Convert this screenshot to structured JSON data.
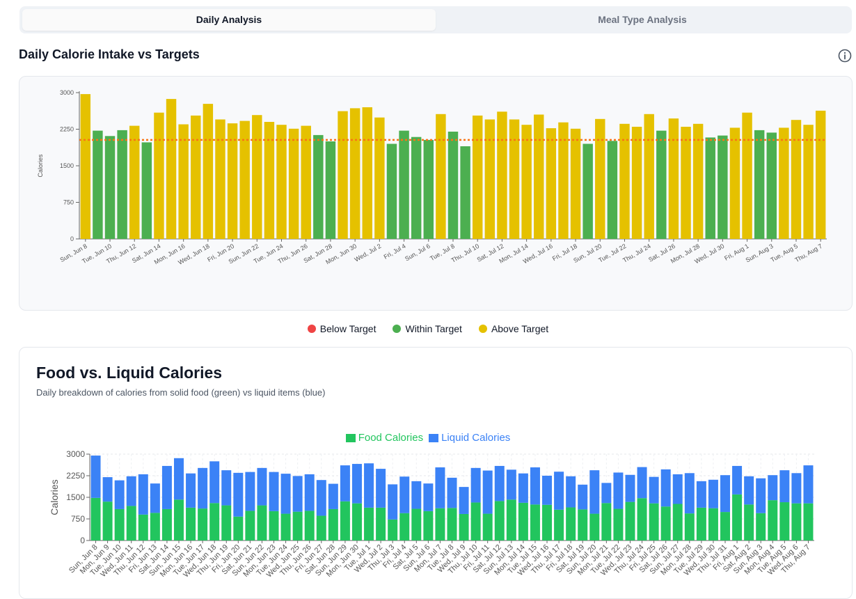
{
  "tabs": {
    "daily": "Daily Analysis",
    "meal": "Meal Type Analysis"
  },
  "section_title": "Daily Calorie Intake vs Targets",
  "info_icon": "info-icon",
  "legend1": [
    {
      "label": "Below Target",
      "color": "#ef4444"
    },
    {
      "label": "Within Target",
      "color": "#4caf50"
    },
    {
      "label": "Above Target",
      "color": "#e5c100"
    }
  ],
  "card2": {
    "title": "Food vs. Liquid Calories",
    "subtitle": "Daily breakdown of calories from solid food (green) vs liquid items (blue)"
  },
  "legend2": [
    {
      "label": "Food Calories",
      "color": "#22c55e"
    },
    {
      "label": "Liquid Calories",
      "color": "#3b82f6"
    }
  ],
  "colors": {
    "below": "#ef4444",
    "within": "#4caf50",
    "above": "#e5c100",
    "target": "#f97316",
    "food": "#22c55e",
    "liquid": "#3b82f6"
  },
  "chart_data": [
    {
      "type": "bar",
      "title": "Daily Calorie Intake vs Targets",
      "ylabel": "Calories",
      "ylim": [
        0,
        3000
      ],
      "yticks": [
        0,
        750,
        1500,
        2250,
        3000
      ],
      "target": 2030,
      "days": [
        "Sun, Jun 8",
        "Mon, Jun 9",
        "Tue, Jun 10",
        "Wed, Jun 11",
        "Thu, Jun 12",
        "Fri, Jun 13",
        "Sat, Jun 14",
        "Sun, Jun 15",
        "Mon, Jun 16",
        "Tue, Jun 17",
        "Wed, Jun 18",
        "Thu, Jun 19",
        "Fri, Jun 20",
        "Sat, Jun 21",
        "Sun, Jun 22",
        "Mon, Jun 23",
        "Tue, Jun 24",
        "Wed, Jun 25",
        "Thu, Jun 26",
        "Fri, Jun 27",
        "Sat, Jun 28",
        "Sun, Jun 29",
        "Mon, Jun 30",
        "Tue, Jul 1",
        "Wed, Jul 2",
        "Thu, Jul 3",
        "Fri, Jul 4",
        "Sat, Jul 5",
        "Sun, Jul 6",
        "Mon, Jul 7",
        "Tue, Jul 8",
        "Wed, Jul 9",
        "Thu, Jul 10",
        "Fri, Jul 11",
        "Sat, Jul 12",
        "Sun, Jul 13",
        "Mon, Jul 14",
        "Tue, Jul 15",
        "Wed, Jul 16",
        "Thu, Jul 17",
        "Fri, Jul 18",
        "Sat, Jul 19",
        "Sun, Jul 20",
        "Mon, Jul 21",
        "Tue, Jul 22",
        "Wed, Jul 23",
        "Thu, Jul 24",
        "Fri, Jul 25",
        "Sat, Jul 26",
        "Sun, Jul 27",
        "Mon, Jul 28",
        "Tue, Jul 29",
        "Wed, Jul 30",
        "Thu, Jul 31",
        "Fri, Aug 1",
        "Sat, Aug 2",
        "Sun, Aug 3",
        "Mon, Aug 4",
        "Tue, Aug 5",
        "Wed, Aug 6",
        "Thu, Aug 7"
      ],
      "xtick_labels": [
        "Sun, Jun 8",
        "Tue, Jun 10",
        "Thu, Jun 12",
        "Sat, Jun 14",
        "Mon, Jun 16",
        "Wed, Jun 18",
        "Fri, Jun 20",
        "Sun, Jun 22",
        "Tue, Jun 24",
        "Thu, Jun 26",
        "Sat, Jun 28",
        "Mon, Jun 30",
        "Wed, Jul 2",
        "Fri, Jul 4",
        "Sun, Jul 6",
        "Tue, Jul 8",
        "Thu, Jul 10",
        "Sat, Jul 12",
        "Mon, Jul 14",
        "Wed, Jul 16",
        "Fri, Jul 18",
        "Sun, Jul 20",
        "Tue, Jul 22",
        "Thu, Jul 24",
        "Sat, Jul 26",
        "Mon, Jul 28",
        "Wed, Jul 30",
        "Fri, Aug 1",
        "Sun, Aug 3",
        "Tue, Aug 5",
        "Thu, Aug 7"
      ],
      "values": [
        2970,
        2220,
        2110,
        2230,
        2320,
        1980,
        2590,
        2870,
        2350,
        2530,
        2770,
        2450,
        2370,
        2420,
        2540,
        2400,
        2340,
        2260,
        2320,
        2130,
        2000,
        2620,
        2680,
        2700,
        2490,
        1950,
        2220,
        2090,
        2030,
        2560,
        2200,
        1900,
        2530,
        2450,
        2610,
        2450,
        2340,
        2550,
        2270,
        2390,
        2260,
        1950,
        2460,
        2010,
        2360,
        2300,
        2560,
        2220,
        2470,
        2300,
        2360,
        2080,
        2120,
        2280,
        2590,
        2230,
        2180,
        2280,
        2440,
        2340,
        2630
      ],
      "status": [
        "above",
        "within",
        "within",
        "within",
        "above",
        "within",
        "above",
        "above",
        "above",
        "above",
        "above",
        "above",
        "above",
        "above",
        "above",
        "above",
        "above",
        "above",
        "above",
        "within",
        "within",
        "above",
        "above",
        "above",
        "above",
        "within",
        "within",
        "within",
        "within",
        "above",
        "within",
        "within",
        "above",
        "above",
        "above",
        "above",
        "above",
        "above",
        "above",
        "above",
        "above",
        "within",
        "above",
        "within",
        "above",
        "above",
        "above",
        "within",
        "above",
        "above",
        "above",
        "within",
        "within",
        "above",
        "above",
        "within",
        "within",
        "above",
        "above",
        "above",
        "above"
      ]
    },
    {
      "type": "bar",
      "stacked": true,
      "title": "Food vs. Liquid Calories",
      "ylabel": "Calories",
      "ylim": [
        0,
        3000
      ],
      "yticks": [
        0,
        750,
        1500,
        2250,
        3000
      ],
      "categories": [
        "Sun, Jun 8",
        "Mon, Jun 9",
        "Tue, Jun 10",
        "Wed, Jun 11",
        "Thu, Jun 12",
        "Fri, Jun 13",
        "Sat, Jun 14",
        "Sun, Jun 15",
        "Mon, Jun 16",
        "Tue, Jun 17",
        "Wed, Jun 18",
        "Thu, Jun 19",
        "Fri, Jun 20",
        "Sat, Jun 21",
        "Sun, Jun 22",
        "Mon, Jun 23",
        "Tue, Jun 24",
        "Wed, Jun 25",
        "Thu, Jun 26",
        "Fri, Jun 27",
        "Sat, Jun 28",
        "Sun, Jun 29",
        "Mon, Jun 30",
        "Tue, Jul 1",
        "Wed, Jul 2",
        "Thu, Jul 3",
        "Fri, Jul 4",
        "Sat, Jul 5",
        "Sun, Jul 6",
        "Mon, Jul 7",
        "Tue, Jul 8",
        "Wed, Jul 9",
        "Thu, Jul 10",
        "Fri, Jul 11",
        "Sat, Jul 12",
        "Sun, Jul 13",
        "Mon, Jul 14",
        "Tue, Jul 15",
        "Wed, Jul 16",
        "Thu, Jul 17",
        "Fri, Jul 18",
        "Sat, Jul 19",
        "Sun, Jul 20",
        "Mon, Jul 21",
        "Tue, Jul 22",
        "Wed, Jul 23",
        "Thu, Jul 24",
        "Fri, Jul 25",
        "Sat, Jul 26",
        "Sun, Jul 27",
        "Mon, Jul 28",
        "Tue, Jul 29",
        "Wed, Jul 30",
        "Thu, Jul 31",
        "Fri, Aug 1",
        "Sat, Aug 2",
        "Sun, Aug 3",
        "Mon, Aug 4",
        "Tue, Aug 5",
        "Wed, Aug 6",
        "Thu, Aug 7"
      ],
      "series": [
        {
          "name": "Food Calories",
          "values": [
            1480,
            1350,
            1090,
            1200,
            900,
            960,
            1090,
            1420,
            1140,
            1110,
            1300,
            1220,
            830,
            1030,
            1220,
            1020,
            930,
            1000,
            1030,
            860,
            1090,
            1360,
            1290,
            1140,
            1140,
            730,
            950,
            1100,
            1020,
            1120,
            1130,
            920,
            1320,
            930,
            1370,
            1420,
            1310,
            1250,
            1240,
            1070,
            1150,
            1080,
            930,
            1300,
            1100,
            1340,
            1470,
            1290,
            1180,
            1270,
            940,
            1140,
            1120,
            990,
            1600,
            1250,
            950,
            1400,
            1330,
            1290,
            1290
          ]
        },
        {
          "name": "Liquid Calories",
          "values": [
            1470,
            850,
            1000,
            1030,
            1400,
            1020,
            1500,
            1440,
            1190,
            1410,
            1450,
            1220,
            1520,
            1350,
            1300,
            1360,
            1390,
            1240,
            1270,
            1240,
            880,
            1250,
            1370,
            1540,
            1350,
            1220,
            1270,
            960,
            960,
            1420,
            1050,
            940,
            1200,
            1500,
            1220,
            1040,
            1020,
            1290,
            1010,
            1320,
            1080,
            860,
            1510,
            700,
            1260,
            940,
            1080,
            920,
            1290,
            1030,
            1400,
            920,
            990,
            1280,
            990,
            980,
            1210,
            870,
            1110,
            1050,
            1320
          ]
        }
      ]
    }
  ]
}
